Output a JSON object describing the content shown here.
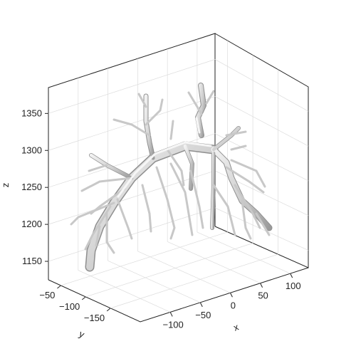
{
  "chart_data": {
    "type": "surface3d",
    "title": "",
    "xlabel": "x",
    "ylabel": "y",
    "zlabel": "z",
    "xlim": [
      -150,
      130
    ],
    "ylim": [
      -210,
      -25
    ],
    "zlim": [
      1125,
      1385
    ],
    "xticks": [
      -100,
      -50,
      0,
      50,
      100
    ],
    "yticks": [
      -50,
      -100,
      -150
    ],
    "zticks": [
      1150,
      1200,
      1250,
      1300,
      1350
    ],
    "xtick_labels": [
      "−100",
      "−50",
      "0",
      "50",
      "100"
    ],
    "ytick_labels": [
      "−50",
      "−100",
      "−150"
    ],
    "ztick_labels": [
      "1150",
      "1200",
      "1250",
      "1300",
      "1350"
    ],
    "grid": true,
    "surface_color": "#d6d6d6",
    "surface_shade": "#9a9a9a",
    "box_color": "#222222",
    "grid_color": "#dcdcdc"
  }
}
